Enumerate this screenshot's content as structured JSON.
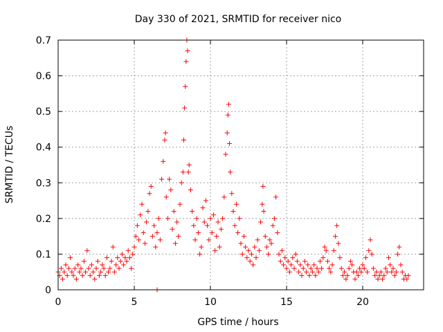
{
  "chart_data": {
    "type": "scatter",
    "title": "Day 330 of 2021, SRMTID for receiver nico",
    "xlabel": "GPS time / hours",
    "ylabel": "SRMTID / TECUs",
    "xlim": [
      0,
      24.0
    ],
    "ylim": [
      0,
      0.7
    ],
    "xticks": [
      0,
      5,
      10,
      15,
      20
    ],
    "yticks": [
      0,
      0.1,
      0.2,
      0.3,
      0.4,
      0.5,
      0.6,
      0.7
    ],
    "xtick_labels": [
      "0",
      "5",
      "10",
      "15",
      "20"
    ],
    "ytick_labels": [
      "0",
      "0.1",
      "0.2",
      "0.3",
      "0.4",
      "0.5",
      "0.6",
      "0.7"
    ],
    "grid": true,
    "marker": "+",
    "color": "#ff0000",
    "series": [
      {
        "name": "SRMTID",
        "points": [
          [
            0.0,
            0.05
          ],
          [
            0.1,
            0.04
          ],
          [
            0.2,
            0.06
          ],
          [
            0.3,
            0.03
          ],
          [
            0.4,
            0.05
          ],
          [
            0.5,
            0.07
          ],
          [
            0.6,
            0.04
          ],
          [
            0.7,
            0.06
          ],
          [
            0.8,
            0.09
          ],
          [
            0.9,
            0.05
          ],
          [
            1.0,
            0.04
          ],
          [
            1.1,
            0.06
          ],
          [
            1.2,
            0.03
          ],
          [
            1.3,
            0.07
          ],
          [
            1.4,
            0.05
          ],
          [
            1.5,
            0.06
          ],
          [
            1.6,
            0.04
          ],
          [
            1.7,
            0.08
          ],
          [
            1.8,
            0.05
          ],
          [
            1.9,
            0.11
          ],
          [
            2.0,
            0.06
          ],
          [
            2.1,
            0.04
          ],
          [
            2.2,
            0.07
          ],
          [
            2.3,
            0.05
          ],
          [
            2.4,
            0.03
          ],
          [
            2.5,
            0.06
          ],
          [
            2.6,
            0.08
          ],
          [
            2.7,
            0.04
          ],
          [
            2.8,
            0.05
          ],
          [
            2.9,
            0.07
          ],
          [
            3.0,
            0.06
          ],
          [
            3.1,
            0.04
          ],
          [
            3.2,
            0.09
          ],
          [
            3.3,
            0.05
          ],
          [
            3.4,
            0.06
          ],
          [
            3.5,
            0.08
          ],
          [
            3.6,
            0.12
          ],
          [
            3.7,
            0.05
          ],
          [
            3.8,
            0.07
          ],
          [
            3.9,
            0.09
          ],
          [
            4.0,
            0.06
          ],
          [
            4.1,
            0.08
          ],
          [
            4.2,
            0.1
          ],
          [
            4.3,
            0.07
          ],
          [
            4.4,
            0.09
          ],
          [
            4.5,
            0.08
          ],
          [
            4.6,
            0.11
          ],
          [
            4.7,
            0.09
          ],
          [
            4.8,
            0.06
          ],
          [
            4.9,
            0.1
          ],
          [
            5.0,
            0.12
          ],
          [
            5.1,
            0.15
          ],
          [
            5.2,
            0.18
          ],
          [
            5.3,
            0.14
          ],
          [
            5.4,
            0.21
          ],
          [
            5.5,
            0.24
          ],
          [
            5.6,
            0.16
          ],
          [
            5.7,
            0.13
          ],
          [
            5.8,
            0.19
          ],
          [
            5.9,
            0.22
          ],
          [
            6.0,
            0.27
          ],
          [
            6.1,
            0.29
          ],
          [
            6.2,
            0.15
          ],
          [
            6.3,
            0.18
          ],
          [
            6.4,
            0.12
          ],
          [
            6.5,
            0.16
          ],
          [
            6.6,
            0.2
          ],
          [
            6.7,
            0.14
          ],
          [
            6.8,
            0.31
          ],
          [
            6.9,
            0.36
          ],
          [
            7.0,
            0.42
          ],
          [
            7.05,
            0.44
          ],
          [
            7.1,
            0.26
          ],
          [
            7.2,
            0.2
          ],
          [
            7.3,
            0.31
          ],
          [
            7.4,
            0.28
          ],
          [
            7.5,
            0.17
          ],
          [
            7.6,
            0.22
          ],
          [
            7.7,
            0.13
          ],
          [
            7.8,
            0.19
          ],
          [
            7.9,
            0.15
          ],
          [
            8.0,
            0.24
          ],
          [
            8.1,
            0.3
          ],
          [
            8.2,
            0.33
          ],
          [
            8.25,
            0.42
          ],
          [
            8.3,
            0.51
          ],
          [
            8.35,
            0.57
          ],
          [
            8.4,
            0.64
          ],
          [
            8.45,
            0.7
          ],
          [
            8.5,
            0.67
          ],
          [
            8.55,
            0.33
          ],
          [
            8.6,
            0.35
          ],
          [
            8.7,
            0.28
          ],
          [
            8.8,
            0.22
          ],
          [
            8.9,
            0.18
          ],
          [
            9.0,
            0.14
          ],
          [
            9.1,
            0.2
          ],
          [
            9.2,
            0.16
          ],
          [
            9.3,
            0.1
          ],
          [
            9.4,
            0.12
          ],
          [
            9.5,
            0.23
          ],
          [
            9.6,
            0.19
          ],
          [
            9.7,
            0.25
          ],
          [
            9.8,
            0.18
          ],
          [
            9.9,
            0.14
          ],
          [
            10.0,
            0.2
          ],
          [
            10.1,
            0.16
          ],
          [
            10.2,
            0.21
          ],
          [
            10.3,
            0.11
          ],
          [
            10.4,
            0.15
          ],
          [
            10.5,
            0.19
          ],
          [
            10.6,
            0.12
          ],
          [
            10.7,
            0.17
          ],
          [
            10.8,
            0.2
          ],
          [
            10.9,
            0.26
          ],
          [
            11.0,
            0.38
          ],
          [
            11.1,
            0.44
          ],
          [
            11.15,
            0.49
          ],
          [
            11.2,
            0.52
          ],
          [
            11.25,
            0.41
          ],
          [
            11.3,
            0.33
          ],
          [
            11.4,
            0.27
          ],
          [
            11.5,
            0.22
          ],
          [
            11.6,
            0.18
          ],
          [
            11.7,
            0.24
          ],
          [
            11.8,
            0.16
          ],
          [
            11.9,
            0.2
          ],
          [
            12.0,
            0.13
          ],
          [
            12.1,
            0.1
          ],
          [
            12.2,
            0.15
          ],
          [
            12.3,
            0.12
          ],
          [
            12.4,
            0.09
          ],
          [
            12.5,
            0.11
          ],
          [
            12.6,
            0.08
          ],
          [
            12.7,
            0.1
          ],
          [
            12.8,
            0.07
          ],
          [
            12.9,
            0.12
          ],
          [
            13.0,
            0.09
          ],
          [
            13.1,
            0.14
          ],
          [
            13.2,
            0.11
          ],
          [
            13.3,
            0.19
          ],
          [
            13.4,
            0.24
          ],
          [
            13.45,
            0.29
          ],
          [
            13.5,
            0.22
          ],
          [
            13.6,
            0.15
          ],
          [
            13.7,
            0.12
          ],
          [
            13.8,
            0.1
          ],
          [
            13.9,
            0.14
          ],
          [
            14.0,
            0.13
          ],
          [
            14.1,
            0.18
          ],
          [
            14.2,
            0.2
          ],
          [
            14.3,
            0.26
          ],
          [
            14.4,
            0.16
          ],
          [
            14.5,
            0.1
          ],
          [
            14.6,
            0.08
          ],
          [
            14.7,
            0.11
          ],
          [
            14.8,
            0.07
          ],
          [
            14.9,
            0.09
          ],
          [
            15.0,
            0.06
          ],
          [
            15.1,
            0.08
          ],
          [
            15.2,
            0.05
          ],
          [
            15.3,
            0.07
          ],
          [
            15.4,
            0.09
          ],
          [
            15.5,
            0.06
          ],
          [
            15.6,
            0.1
          ],
          [
            15.7,
            0.08
          ],
          [
            15.8,
            0.05
          ],
          [
            15.9,
            0.07
          ],
          [
            16.0,
            0.04
          ],
          [
            16.1,
            0.06
          ],
          [
            16.2,
            0.08
          ],
          [
            16.3,
            0.05
          ],
          [
            16.4,
            0.07
          ],
          [
            16.5,
            0.04
          ],
          [
            16.6,
            0.06
          ],
          [
            16.7,
            0.05
          ],
          [
            16.8,
            0.07
          ],
          [
            16.9,
            0.04
          ],
          [
            17.0,
            0.06
          ],
          [
            17.1,
            0.05
          ],
          [
            17.2,
            0.08
          ],
          [
            17.3,
            0.06
          ],
          [
            17.4,
            0.09
          ],
          [
            17.5,
            0.12
          ],
          [
            17.6,
            0.11
          ],
          [
            17.7,
            0.08
          ],
          [
            17.8,
            0.06
          ],
          [
            17.9,
            0.05
          ],
          [
            18.0,
            0.07
          ],
          [
            18.1,
            0.11
          ],
          [
            18.2,
            0.15
          ],
          [
            18.3,
            0.18
          ],
          [
            18.4,
            0.13
          ],
          [
            18.5,
            0.09
          ],
          [
            18.6,
            0.06
          ],
          [
            18.7,
            0.04
          ],
          [
            18.8,
            0.05
          ],
          [
            18.9,
            0.03
          ],
          [
            19.0,
            0.04
          ],
          [
            19.1,
            0.06
          ],
          [
            19.2,
            0.08
          ],
          [
            19.3,
            0.07
          ],
          [
            19.4,
            0.05
          ],
          [
            19.5,
            0.03
          ],
          [
            19.6,
            0.05
          ],
          [
            19.7,
            0.04
          ],
          [
            19.8,
            0.06
          ],
          [
            19.9,
            0.05
          ],
          [
            20.0,
            0.07
          ],
          [
            20.1,
            0.06
          ],
          [
            20.2,
            0.09
          ],
          [
            20.3,
            0.05
          ],
          [
            20.4,
            0.11
          ],
          [
            20.5,
            0.14
          ],
          [
            20.6,
            0.1
          ],
          [
            20.7,
            0.06
          ],
          [
            20.8,
            0.04
          ],
          [
            20.9,
            0.05
          ],
          [
            21.0,
            0.03
          ],
          [
            21.1,
            0.04
          ],
          [
            21.2,
            0.05
          ],
          [
            21.3,
            0.03
          ],
          [
            21.4,
            0.04
          ],
          [
            21.5,
            0.06
          ],
          [
            21.6,
            0.05
          ],
          [
            21.7,
            0.09
          ],
          [
            21.8,
            0.07
          ],
          [
            21.9,
            0.05
          ],
          [
            22.0,
            0.06
          ],
          [
            22.1,
            0.04
          ],
          [
            22.2,
            0.05
          ],
          [
            22.3,
            0.1
          ],
          [
            22.4,
            0.12
          ],
          [
            22.5,
            0.07
          ],
          [
            22.6,
            0.05
          ],
          [
            22.7,
            0.03
          ],
          [
            22.8,
            0.04
          ],
          [
            22.9,
            0.03
          ],
          [
            23.0,
            0.04
          ],
          [
            6.5,
            0.0
          ]
        ]
      }
    ]
  }
}
